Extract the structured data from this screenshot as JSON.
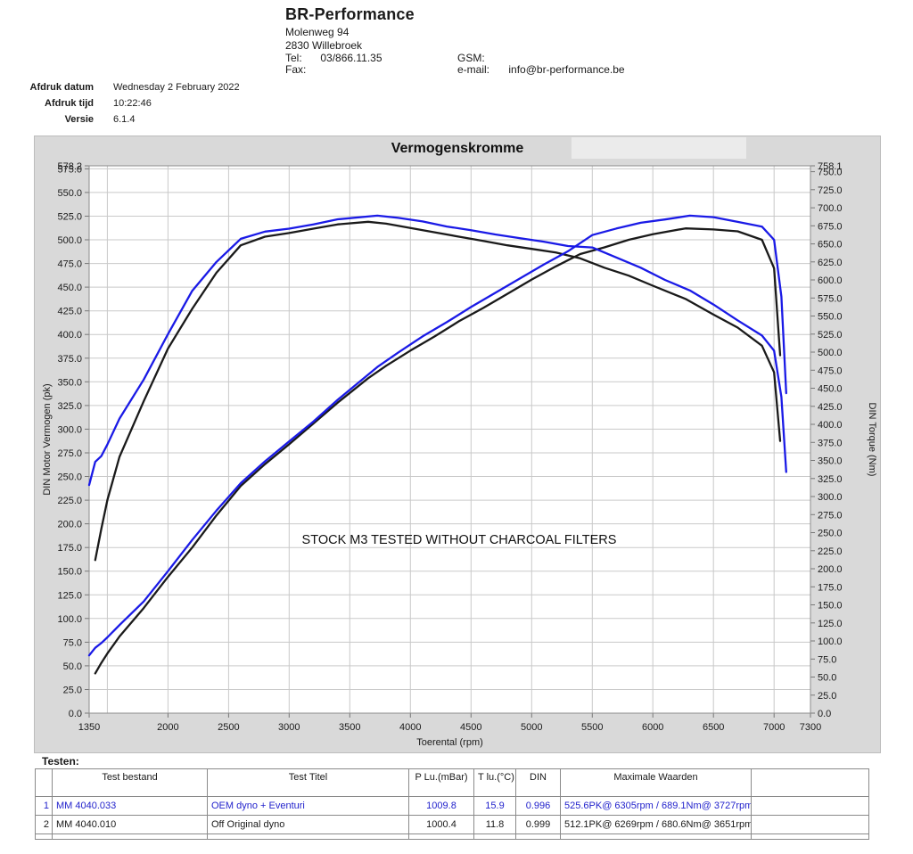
{
  "header": {
    "company": "BR-Performance",
    "address1": "Molenweg 94",
    "address2": "2830 Willebroek",
    "tel_label": "Tel:",
    "tel_value": "03/866.11.35",
    "fax_label": "Fax:",
    "gsm_label": "GSM:",
    "email_label": "e-mail:",
    "email_value": "info@br-performance.be"
  },
  "meta": {
    "rows": [
      {
        "label": "Afdruk datum",
        "value": "Wednesday 2 February 2022"
      },
      {
        "label": "Afdruk tijd",
        "value": "10:22:46"
      },
      {
        "label": "Versie",
        "value": "6.1.4"
      }
    ]
  },
  "chart_data": {
    "type": "line",
    "title": "Vermogenskromme",
    "xlabel": "Toerental (rpm)",
    "ylabel_left": "DIN Motor Vermogen (pk)",
    "ylabel_right": "DIN Torque (Nm)",
    "annotation": "STOCK M3 TESTED WITHOUT CHARCOAL FILTERS",
    "x_range": [
      1350,
      7300
    ],
    "ylim_left": [
      0,
      578.2
    ],
    "ylim_right": [
      0,
      758.1
    ],
    "y_tick_step": 25,
    "x_tick_labels": [
      1350,
      2000,
      2500,
      3000,
      3500,
      4000,
      4500,
      5000,
      5500,
      6000,
      6500,
      7000,
      7300
    ],
    "x_grid_start": 1500,
    "x_grid_step": 500,
    "grid": true,
    "colors": {
      "panel_bg": "#d9d9d9",
      "plot_bg": "#ffffff",
      "gridline": "#c9c9c9",
      "plot_border": "#8c8c8c",
      "tick_text": "#1a1a1a"
    },
    "series": [
      {
        "name": "OEM dyno + Eventuri",
        "color": "#1a1ae6",
        "rpm": [
          1350,
          1400,
          1450,
          1500,
          1600,
          1800,
          2000,
          2200,
          2400,
          2600,
          2800,
          3000,
          3200,
          3400,
          3727,
          3900,
          4100,
          4300,
          4500,
          4700,
          4900,
          5100,
          5300,
          5500,
          5700,
          5900,
          6100,
          6305,
          6500,
          6700,
          6900,
          7000,
          7060,
          7100
        ],
        "power_pk": [
          61,
          69,
          74,
          80,
          93,
          118,
          150,
          183,
          214,
          243,
          266,
          287,
          308,
          331,
          365.7,
          381,
          398,
          413,
          429,
          444,
          459,
          474,
          488,
          505,
          512,
          518,
          521.5,
          525.6,
          524,
          519,
          514,
          500,
          440,
          338
        ],
        "torque_nm": [
          316,
          348,
          356,
          372,
          408,
          462,
          525,
          585,
          625,
          657,
          667,
          671,
          677,
          684,
          689.1,
          686,
          681,
          674,
          669,
          663,
          658,
          653,
          647,
          645,
          631,
          617,
          600,
          585.5,
          566,
          544,
          523,
          502,
          438,
          334
        ],
        "max_power": "525.6PK@ 6305rpm",
        "max_torque": "689.1Nm@ 3727rpm"
      },
      {
        "name": "Off Original dyno",
        "color": "#1a1a1a",
        "rpm": [
          1400,
          1450,
          1500,
          1600,
          1800,
          2000,
          2200,
          2400,
          2600,
          2800,
          3000,
          3200,
          3400,
          3651,
          3800,
          4000,
          4200,
          4400,
          4600,
          4800,
          5000,
          5200,
          5400,
          5600,
          5800,
          6000,
          6269,
          6500,
          6700,
          6900,
          7000,
          7050
        ],
        "power_pk": [
          42,
          53,
          63,
          81,
          111,
          144,
          175,
          209,
          240,
          263,
          284,
          306,
          328,
          353.8,
          367,
          383,
          398,
          414,
          428,
          443,
          458,
          472,
          485,
          492,
          500,
          506,
          512.1,
          511,
          509,
          500,
          470,
          378
        ],
        "torque_nm": [
          212,
          255,
          295,
          355,
          432,
          505,
          560,
          610,
          648,
          660,
          665,
          671,
          677,
          680.6,
          678,
          672,
          666,
          660,
          654,
          648,
          643,
          638,
          630,
          617,
          606,
          592,
          573.7,
          552,
          534,
          509,
          472,
          377
        ],
        "max_power": "512.1PK@ 6269rpm",
        "max_torque": "680.6Nm@ 3651rpm"
      }
    ]
  },
  "table": {
    "section_label": "Testen:",
    "headers": [
      "",
      "Test bestand",
      "Test Titel",
      "P Lu.(mBar)",
      "T lu.(°C)",
      "DIN",
      "Maximale Waarden",
      ""
    ],
    "rows": [
      {
        "num": "1",
        "file": "MM 4040.033",
        "title": "OEM dyno + Eventuri",
        "p_lu": "1009.8",
        "t_lu": "15.9",
        "din": "0.996",
        "max": "525.6PK@ 6305rpm / 689.1Nm@ 3727rpm",
        "color": "#2323cc"
      },
      {
        "num": "2",
        "file": "MM 4040.010",
        "title": "Off Original dyno",
        "p_lu": "1000.4",
        "t_lu": "11.8",
        "din": "0.999",
        "max": "512.1PK@ 6269rpm / 680.6Nm@ 3651rpm",
        "color": "#1a1a1a"
      }
    ]
  }
}
